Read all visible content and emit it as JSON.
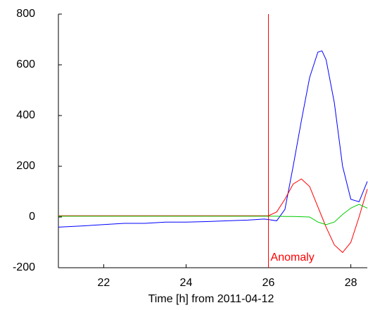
{
  "chart_data": {
    "type": "line",
    "xlabel": "Time [h] from 2011-04-12",
    "x": [
      20.9,
      21.5,
      22,
      22.5,
      23,
      23.5,
      24,
      24.5,
      25,
      25.5,
      25.9,
      26.0,
      26.2,
      26.4,
      26.6,
      26.8,
      27.0,
      27.2,
      27.3,
      27.4,
      27.6,
      27.8,
      28.0,
      28.2,
      28.4
    ],
    "series": [
      {
        "name": "blue",
        "color": "#0000ff",
        "values": [
          -40,
          -35,
          -30,
          -25,
          -25,
          -20,
          -20,
          -18,
          -15,
          -12,
          -8,
          -10,
          -15,
          30,
          200,
          380,
          550,
          650,
          655,
          620,
          450,
          200,
          70,
          60,
          140
        ]
      },
      {
        "name": "red",
        "color": "#ff0000",
        "values": [
          5,
          5,
          5,
          5,
          5,
          5,
          5,
          5,
          5,
          5,
          5,
          5,
          20,
          70,
          130,
          150,
          120,
          40,
          0,
          -40,
          -110,
          -140,
          -100,
          0,
          110
        ]
      },
      {
        "name": "green",
        "color": "#00cc00",
        "values": [
          3,
          3,
          3,
          3,
          3,
          3,
          3,
          3,
          3,
          3,
          3,
          3,
          3,
          2,
          2,
          1,
          0,
          -20,
          -25,
          -30,
          -20,
          10,
          35,
          50,
          35
        ]
      }
    ],
    "marker_line": {
      "x": 26,
      "color": "#ff0000",
      "label": "Anomaly"
    },
    "xlim": [
      20.9,
      28.4
    ],
    "xticks": [
      22,
      24,
      26,
      28
    ],
    "ylim": [
      -200,
      800
    ],
    "yticks": [
      -200,
      0,
      200,
      400,
      600,
      800
    ]
  }
}
